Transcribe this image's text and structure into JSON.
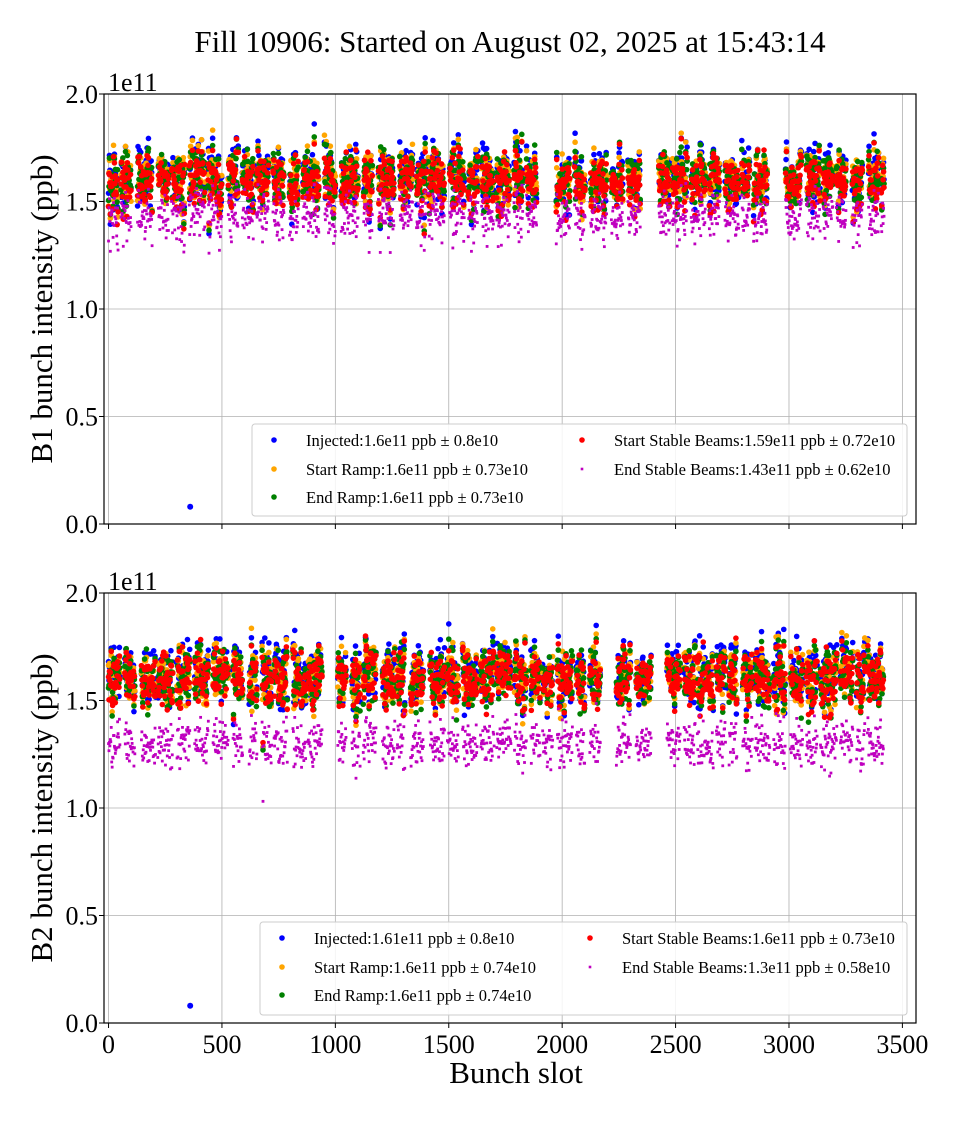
{
  "title": "Fill 10906: Started on August 02, 2025 at 15:43:14",
  "chart_data": [
    {
      "type": "scatter",
      "panel": "top",
      "ylabel": "B1 bunch intensity (ppb)",
      "xlabel": "",
      "y_offset_label": "1e11",
      "xlim": [
        -20,
        3560
      ],
      "ylim": [
        0.0,
        2.0
      ],
      "x_ticks": [
        0,
        500,
        1000,
        1500,
        2000,
        2500,
        3000,
        3500
      ],
      "x_tick_labels_visible": false,
      "y_ticks": [
        0.0,
        0.5,
        1.0,
        1.5,
        2.0
      ],
      "y_tick_labels": [
        "0.0",
        "0.5",
        "1.0",
        "1.5",
        "2.0"
      ],
      "grid": true,
      "legend_position": "lower-right",
      "x_range_of_bunches": [
        0,
        3420
      ],
      "outlier": {
        "x": 360,
        "y": 0.08
      },
      "series": [
        {
          "name": "Injected",
          "label": "Injected:1.6e11 ppb ± 0.8e10",
          "color": "#0000ff",
          "mean": 1.6,
          "std": 0.08
        },
        {
          "name": "Start Ramp",
          "label": "Start Ramp:1.6e11 ppb ± 0.73e10",
          "color": "#ffa500",
          "mean": 1.6,
          "std": 0.073
        },
        {
          "name": "End Ramp",
          "label": "End Ramp:1.6e11 ppb ± 0.73e10",
          "color": "#008000",
          "mean": 1.6,
          "std": 0.073
        },
        {
          "name": "Start Stable Beams",
          "label": "Start Stable Beams:1.59e11 ppb ± 0.72e10",
          "color": "#ff0000",
          "mean": 1.59,
          "std": 0.072
        },
        {
          "name": "End Stable Beams",
          "label": "End Stable Beams:1.43e11 ppb ± 0.62e10",
          "color": "#bf00bf",
          "mean": 1.43,
          "std": 0.062
        }
      ]
    },
    {
      "type": "scatter",
      "panel": "bottom",
      "ylabel": "B2 bunch intensity (ppb)",
      "xlabel": "Bunch slot",
      "y_offset_label": "1e11",
      "xlim": [
        -20,
        3560
      ],
      "ylim": [
        0.0,
        2.0
      ],
      "x_ticks": [
        0,
        500,
        1000,
        1500,
        2000,
        2500,
        3000,
        3500
      ],
      "x_tick_labels": [
        "0",
        "500",
        "1000",
        "1500",
        "2000",
        "2500",
        "3000",
        "3500"
      ],
      "y_ticks": [
        0.0,
        0.5,
        1.0,
        1.5,
        2.0
      ],
      "y_tick_labels": [
        "0.0",
        "0.5",
        "1.0",
        "1.5",
        "2.0"
      ],
      "grid": true,
      "legend_position": "lower-right",
      "x_range_of_bunches": [
        0,
        3420
      ],
      "outlier": {
        "x": 360,
        "y": 0.08
      },
      "series": [
        {
          "name": "Injected",
          "label": "Injected:1.61e11 ppb ± 0.8e10",
          "color": "#0000ff",
          "mean": 1.61,
          "std": 0.08
        },
        {
          "name": "Start Ramp",
          "label": "Start Ramp:1.6e11 ppb ± 0.74e10",
          "color": "#ffa500",
          "mean": 1.6,
          "std": 0.074
        },
        {
          "name": "End Ramp",
          "label": "End Ramp:1.6e11 ppb ± 0.74e10",
          "color": "#008000",
          "mean": 1.6,
          "std": 0.074
        },
        {
          "name": "Start Stable Beams",
          "label": "Start Stable Beams:1.6e11 ppb ± 0.73e10",
          "color": "#ff0000",
          "mean": 1.6,
          "std": 0.073
        },
        {
          "name": "End Stable Beams",
          "label": "End Stable Beams:1.3e11 ppb ± 0.58e10",
          "color": "#bf00bf",
          "mean": 1.3,
          "std": 0.058
        }
      ]
    }
  ]
}
